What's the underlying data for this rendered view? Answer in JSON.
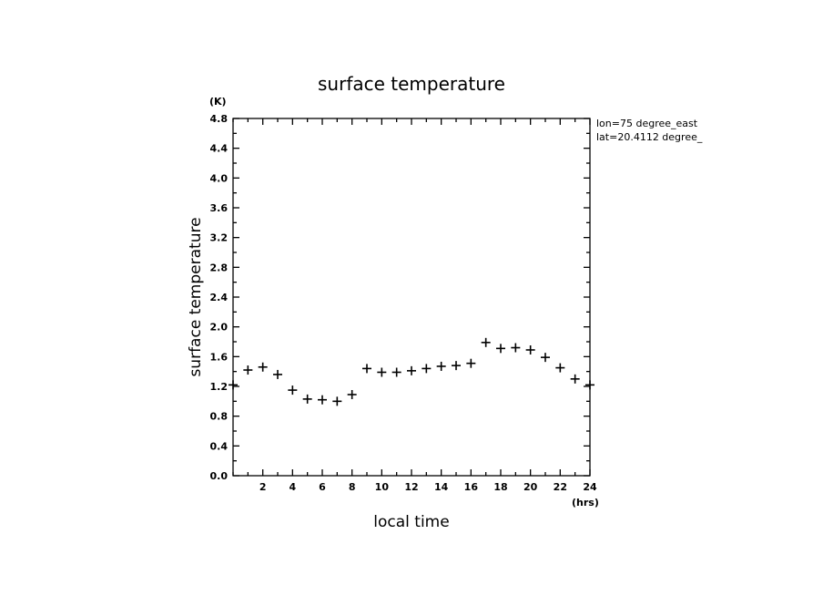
{
  "chart_data": {
    "type": "scatter",
    "title": "surface temperature",
    "xlabel": "local time",
    "ylabel": "surface temperature",
    "x_unit": "(hrs)",
    "y_unit": "(K)",
    "annotations": [
      "lon=75 degree_east",
      "lat=20.4112 degree_"
    ],
    "xlim": [
      0,
      24
    ],
    "ylim": [
      0,
      4.8
    ],
    "x_ticks": [
      2,
      4,
      6,
      8,
      10,
      12,
      14,
      16,
      18,
      20,
      22,
      24
    ],
    "x_tick_labels": [
      "2",
      "4",
      "6",
      "8",
      "10",
      "12",
      "14",
      "16",
      "18",
      "20",
      "22",
      "24"
    ],
    "y_ticks": [
      0,
      0.4,
      0.8,
      1.2,
      1.6,
      2.0,
      2.4,
      2.8,
      3.2,
      3.6,
      4.0,
      4.4,
      4.8
    ],
    "y_tick_labels": [
      "0.0",
      "0.4",
      "0.8",
      "1.2",
      "1.6",
      "2.0",
      "2.4",
      "2.8",
      "3.2",
      "3.6",
      "4.0",
      "4.4",
      "4.8"
    ],
    "grid": false,
    "marker": "plus",
    "x": [
      0,
      1,
      2,
      3,
      4,
      5,
      6,
      7,
      8,
      9,
      10,
      11,
      12,
      13,
      14,
      15,
      16,
      17,
      18,
      19,
      20,
      21,
      22,
      23,
      24
    ],
    "y": [
      1.22,
      1.42,
      1.46,
      1.36,
      1.15,
      1.03,
      1.02,
      1.0,
      1.09,
      1.44,
      1.39,
      1.39,
      1.41,
      1.44,
      1.47,
      1.48,
      1.51,
      1.79,
      1.71,
      1.72,
      1.69,
      1.59,
      1.45,
      1.3,
      1.22
    ]
  }
}
